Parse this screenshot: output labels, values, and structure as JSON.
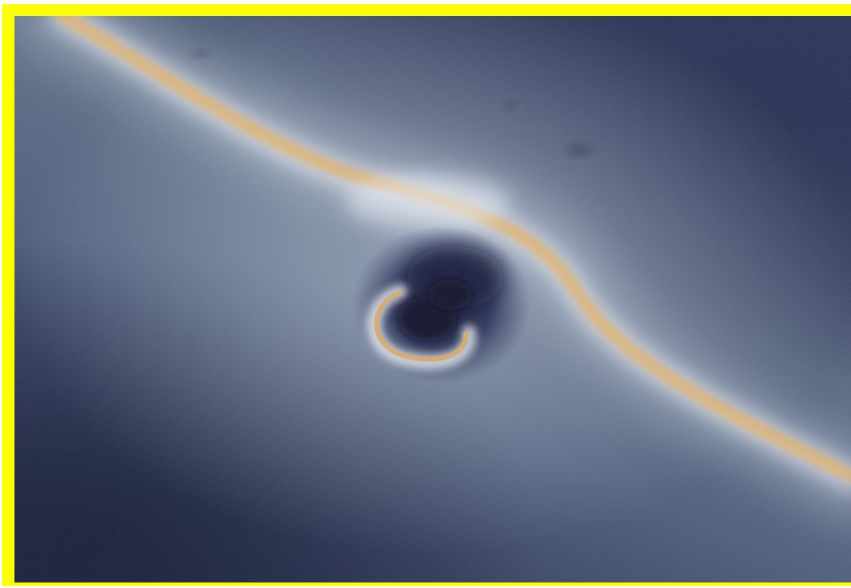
{
  "image": {
    "subject": "black-hole-gravitational-lensing",
    "frame_color": "#ffff00",
    "palette": {
      "space_dark": "#1b2244",
      "space_mid": "#4c5c78",
      "glow": "#dfe6ee",
      "dust_lane": "#d8a862",
      "hole_core": "#0e1230"
    }
  }
}
